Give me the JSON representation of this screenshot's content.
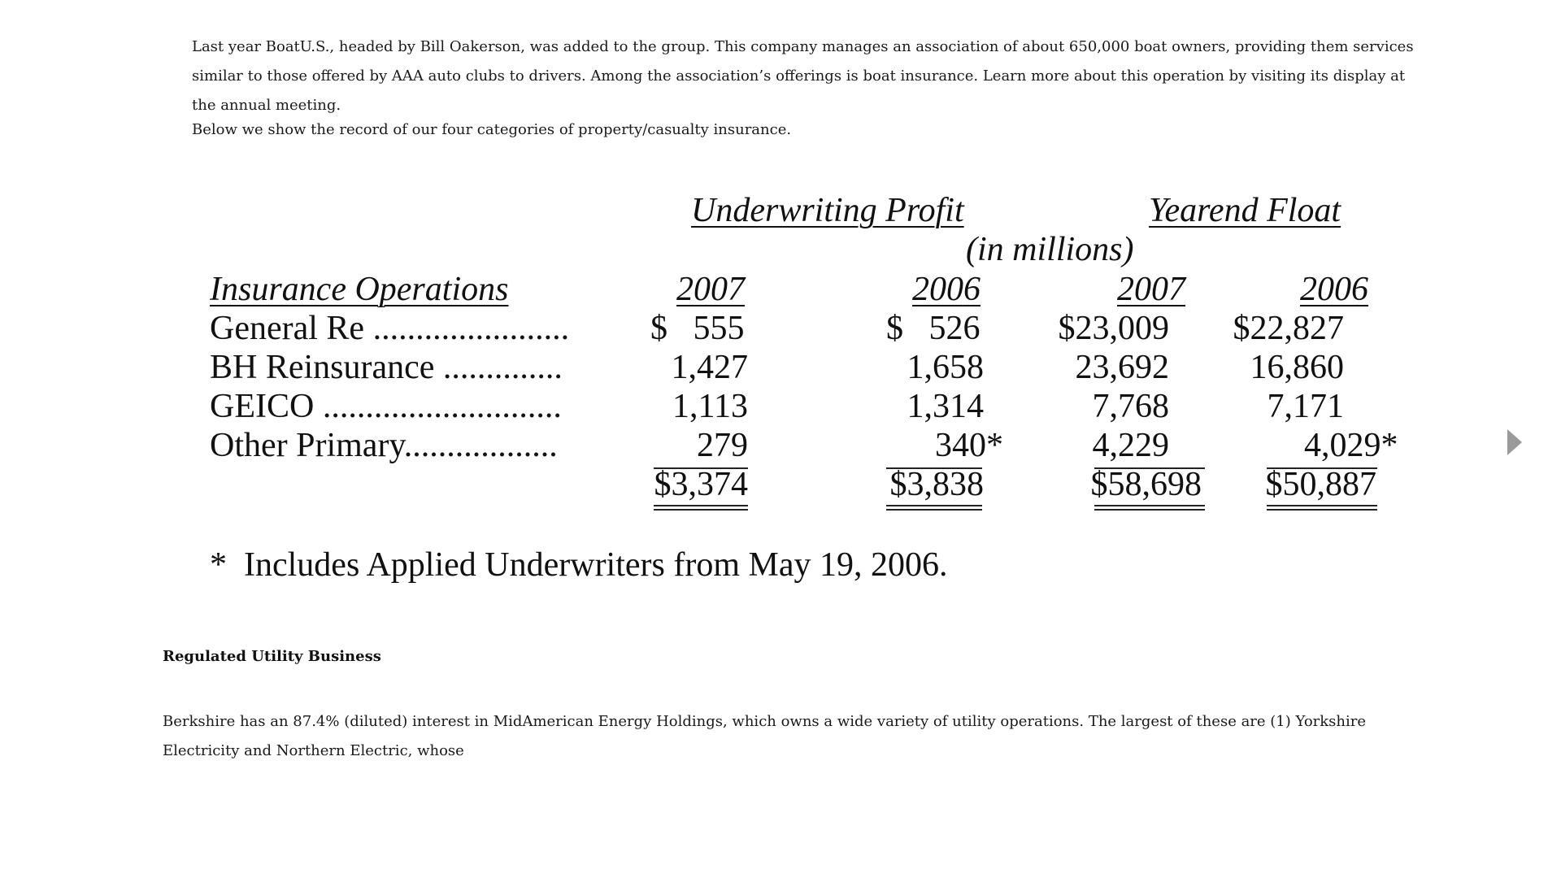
{
  "paragraphs": {
    "p1": "Last year BoatU.S., headed by Bill Oakerson, was added to the group. This company manages an association of about 650,000 boat owners, providing them services similar to those offered by AAA auto clubs to drivers. Among the association’s offerings is boat insurance. Learn more about this operation by visiting its display at the annual meeting.",
    "p2": "Below we show the record of our four categories of property/casualty insurance.",
    "heading": "Regulated Utility Business",
    "p3": "Berkshire has an 87.4% (diluted) interest in MidAmerican Energy Holdings, which owns a wide variety of utility operations. The largest of these are (1) Yorkshire Electricity and Northern Electric, whose"
  },
  "table": {
    "group_underwriting": "Underwriting Profit",
    "group_float": "Yearend Float",
    "units": "(in millions)",
    "col_header_ops": "Insurance Operations",
    "years": [
      "2007",
      "2006",
      "2007",
      "2006"
    ],
    "rows": [
      {
        "label": "General Re .......................",
        "values": [
          "$   555",
          "$   526",
          "$23,009",
          "$22,827"
        ]
      },
      {
        "label": "BH Reinsurance ..............",
        "values": [
          "1,427",
          "1,658",
          "23,692",
          "16,860"
        ]
      },
      {
        "label": "GEICO ............................",
        "values": [
          "1,113",
          "1,314",
          "7,768",
          "7,171"
        ]
      },
      {
        "label": "Other Primary..................",
        "values": [
          "279",
          "340*",
          "4,229",
          "4,029*"
        ]
      }
    ],
    "totals": [
      "$3,374",
      "$3,838",
      "$58,698",
      "$50,887"
    ],
    "footnote": "*  Includes Applied Underwriters from May 19, 2006."
  }
}
